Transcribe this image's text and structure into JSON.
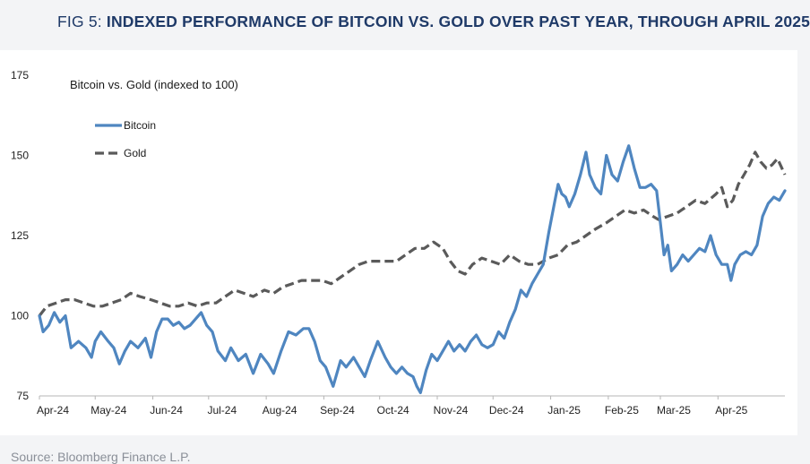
{
  "header": {
    "fig_label": "FIG 5: ",
    "title": "INDEXED PERFORMANCE OF BITCOIN VS. GOLD OVER PAST YEAR, THROUGH APRIL 2025"
  },
  "source": "Source: Bloomberg Finance L.P.",
  "colors": {
    "bitcoin": "#4f86c0",
    "gold": "#5a5a5a",
    "title": "#1f3a68",
    "axis": "#b5b5b5"
  },
  "chart_data": {
    "type": "line",
    "title": "Bitcoin vs. Gold (indexed to 100)",
    "xlabel": "",
    "ylabel": "",
    "ylim": [
      75,
      175
    ],
    "yticks": [
      75,
      100,
      125,
      150,
      175
    ],
    "xlim": [
      "2024-04-01",
      "2025-05-07"
    ],
    "xticks": [
      {
        "date": "2024-04-01",
        "label": "Apr-24"
      },
      {
        "date": "2024-05-01",
        "label": "May-24"
      },
      {
        "date": "2024-06-01",
        "label": "Jun-24"
      },
      {
        "date": "2024-07-01",
        "label": "Jul-24"
      },
      {
        "date": "2024-08-01",
        "label": "Aug-24"
      },
      {
        "date": "2024-09-01",
        "label": "Sep-24"
      },
      {
        "date": "2024-10-01",
        "label": "Oct-24"
      },
      {
        "date": "2024-11-01",
        "label": "Nov-24"
      },
      {
        "date": "2024-12-01",
        "label": "Dec-24"
      },
      {
        "date": "2025-01-01",
        "label": "Jan-25"
      },
      {
        "date": "2025-02-01",
        "label": "Feb-25"
      },
      {
        "date": "2025-03-01",
        "label": "Mar-25"
      },
      {
        "date": "2025-04-01",
        "label": "Apr-25"
      }
    ],
    "legend_placement": "top-left",
    "grid": false,
    "series": [
      {
        "name": "Bitcoin",
        "style": "solid",
        "color": "#4f86c0",
        "points": [
          [
            "2024-04-01",
            100
          ],
          [
            "2024-04-03",
            95
          ],
          [
            "2024-04-06",
            97
          ],
          [
            "2024-04-09",
            101
          ],
          [
            "2024-04-12",
            98
          ],
          [
            "2024-04-15",
            100
          ],
          [
            "2024-04-18",
            90
          ],
          [
            "2024-04-22",
            92
          ],
          [
            "2024-04-26",
            90
          ],
          [
            "2024-04-29",
            87
          ],
          [
            "2024-05-01",
            92
          ],
          [
            "2024-05-04",
            95
          ],
          [
            "2024-05-08",
            92
          ],
          [
            "2024-05-11",
            90
          ],
          [
            "2024-05-14",
            85
          ],
          [
            "2024-05-17",
            89
          ],
          [
            "2024-05-20",
            92
          ],
          [
            "2024-05-24",
            90
          ],
          [
            "2024-05-28",
            93
          ],
          [
            "2024-05-31",
            87
          ],
          [
            "2024-06-03",
            95
          ],
          [
            "2024-06-06",
            99
          ],
          [
            "2024-06-09",
            99
          ],
          [
            "2024-06-12",
            97
          ],
          [
            "2024-06-15",
            98
          ],
          [
            "2024-06-18",
            96
          ],
          [
            "2024-06-21",
            97
          ],
          [
            "2024-06-24",
            99
          ],
          [
            "2024-06-27",
            101
          ],
          [
            "2024-06-30",
            97
          ],
          [
            "2024-07-03",
            95
          ],
          [
            "2024-07-06",
            89
          ],
          [
            "2024-07-10",
            86
          ],
          [
            "2024-07-13",
            90
          ],
          [
            "2024-07-17",
            86
          ],
          [
            "2024-07-21",
            88
          ],
          [
            "2024-07-25",
            82
          ],
          [
            "2024-07-29",
            88
          ],
          [
            "2024-08-02",
            85
          ],
          [
            "2024-08-05",
            82
          ],
          [
            "2024-08-09",
            89
          ],
          [
            "2024-08-13",
            95
          ],
          [
            "2024-08-17",
            94
          ],
          [
            "2024-08-21",
            96
          ],
          [
            "2024-08-24",
            96
          ],
          [
            "2024-08-27",
            92
          ],
          [
            "2024-08-30",
            86
          ],
          [
            "2024-09-02",
            84
          ],
          [
            "2024-09-06",
            78
          ],
          [
            "2024-09-10",
            86
          ],
          [
            "2024-09-13",
            84
          ],
          [
            "2024-09-17",
            87
          ],
          [
            "2024-09-20",
            84
          ],
          [
            "2024-09-23",
            81
          ],
          [
            "2024-09-26",
            86
          ],
          [
            "2024-09-30",
            92
          ],
          [
            "2024-10-04",
            87
          ],
          [
            "2024-10-07",
            84
          ],
          [
            "2024-10-10",
            82
          ],
          [
            "2024-10-13",
            84
          ],
          [
            "2024-10-16",
            82
          ],
          [
            "2024-10-19",
            81
          ],
          [
            "2024-10-21",
            78
          ],
          [
            "2024-10-23",
            76
          ],
          [
            "2024-10-26",
            83
          ],
          [
            "2024-10-29",
            88
          ],
          [
            "2024-11-01",
            86
          ],
          [
            "2024-11-04",
            89
          ],
          [
            "2024-11-07",
            92
          ],
          [
            "2024-11-10",
            89
          ],
          [
            "2024-11-13",
            91
          ],
          [
            "2024-11-16",
            89
          ],
          [
            "2024-11-19",
            92
          ],
          [
            "2024-11-22",
            94
          ],
          [
            "2024-11-25",
            91
          ],
          [
            "2024-11-28",
            90
          ],
          [
            "2024-12-01",
            91
          ],
          [
            "2024-12-04",
            95
          ],
          [
            "2024-12-07",
            93
          ],
          [
            "2024-12-10",
            98
          ],
          [
            "2024-12-13",
            102
          ],
          [
            "2024-12-16",
            108
          ],
          [
            "2024-12-19",
            106
          ],
          [
            "2024-12-22",
            110
          ],
          [
            "2024-12-25",
            113
          ],
          [
            "2024-12-28",
            116
          ],
          [
            "2024-12-31",
            126
          ],
          [
            "2025-01-03",
            135
          ],
          [
            "2025-01-05",
            141
          ],
          [
            "2025-01-07",
            138
          ],
          [
            "2025-01-09",
            137
          ],
          [
            "2025-01-11",
            134
          ],
          [
            "2025-01-14",
            138
          ],
          [
            "2025-01-17",
            144
          ],
          [
            "2025-01-20",
            151
          ],
          [
            "2025-01-22",
            144
          ],
          [
            "2025-01-25",
            140
          ],
          [
            "2025-01-28",
            138
          ],
          [
            "2025-01-31",
            150
          ],
          [
            "2025-02-03",
            144
          ],
          [
            "2025-02-06",
            142
          ],
          [
            "2025-02-09",
            148
          ],
          [
            "2025-02-12",
            153
          ],
          [
            "2025-02-15",
            146
          ],
          [
            "2025-02-18",
            140
          ],
          [
            "2025-02-21",
            140
          ],
          [
            "2025-02-24",
            141
          ],
          [
            "2025-02-27",
            139
          ],
          [
            "2025-03-01",
            129
          ],
          [
            "2025-03-03",
            119
          ],
          [
            "2025-03-05",
            122
          ],
          [
            "2025-03-07",
            114
          ],
          [
            "2025-03-10",
            116
          ],
          [
            "2025-03-13",
            119
          ],
          [
            "2025-03-16",
            117
          ],
          [
            "2025-03-19",
            119
          ],
          [
            "2025-03-22",
            121
          ],
          [
            "2025-03-25",
            120
          ],
          [
            "2025-03-28",
            125
          ],
          [
            "2025-03-31",
            119
          ],
          [
            "2025-04-03",
            116
          ],
          [
            "2025-04-06",
            116
          ],
          [
            "2025-04-08",
            111
          ],
          [
            "2025-04-10",
            116
          ],
          [
            "2025-04-13",
            119
          ],
          [
            "2025-04-16",
            120
          ],
          [
            "2025-04-19",
            119
          ],
          [
            "2025-04-22",
            122
          ],
          [
            "2025-04-25",
            131
          ],
          [
            "2025-04-28",
            135
          ],
          [
            "2025-05-01",
            137
          ],
          [
            "2025-05-04",
            136
          ],
          [
            "2025-05-07",
            139
          ]
        ]
      },
      {
        "name": "Gold",
        "style": "dashed",
        "color": "#5a5a5a",
        "points": [
          [
            "2024-04-01",
            100
          ],
          [
            "2024-04-05",
            103
          ],
          [
            "2024-04-10",
            104
          ],
          [
            "2024-04-15",
            105
          ],
          [
            "2024-04-20",
            105
          ],
          [
            "2024-04-25",
            104
          ],
          [
            "2024-04-30",
            103
          ],
          [
            "2024-05-05",
            103
          ],
          [
            "2024-05-10",
            104
          ],
          [
            "2024-05-15",
            105
          ],
          [
            "2024-05-20",
            107
          ],
          [
            "2024-05-25",
            106
          ],
          [
            "2024-05-31",
            105
          ],
          [
            "2024-06-05",
            104
          ],
          [
            "2024-06-10",
            103
          ],
          [
            "2024-06-15",
            103
          ],
          [
            "2024-06-20",
            104
          ],
          [
            "2024-06-25",
            103
          ],
          [
            "2024-06-30",
            104
          ],
          [
            "2024-07-05",
            104
          ],
          [
            "2024-07-10",
            106
          ],
          [
            "2024-07-15",
            108
          ],
          [
            "2024-07-20",
            107
          ],
          [
            "2024-07-25",
            106
          ],
          [
            "2024-07-31",
            108
          ],
          [
            "2024-08-05",
            107
          ],
          [
            "2024-08-10",
            109
          ],
          [
            "2024-08-15",
            110
          ],
          [
            "2024-08-20",
            111
          ],
          [
            "2024-08-25",
            111
          ],
          [
            "2024-08-31",
            111
          ],
          [
            "2024-09-05",
            110
          ],
          [
            "2024-09-10",
            112
          ],
          [
            "2024-09-15",
            114
          ],
          [
            "2024-09-20",
            116
          ],
          [
            "2024-09-25",
            117
          ],
          [
            "2024-09-30",
            117
          ],
          [
            "2024-10-05",
            117
          ],
          [
            "2024-10-10",
            117
          ],
          [
            "2024-10-15",
            119
          ],
          [
            "2024-10-20",
            121
          ],
          [
            "2024-10-25",
            121
          ],
          [
            "2024-10-30",
            123
          ],
          [
            "2024-11-04",
            121
          ],
          [
            "2024-11-08",
            117
          ],
          [
            "2024-11-12",
            114
          ],
          [
            "2024-11-16",
            113
          ],
          [
            "2024-11-20",
            116
          ],
          [
            "2024-11-25",
            118
          ],
          [
            "2024-11-30",
            117
          ],
          [
            "2024-12-05",
            116
          ],
          [
            "2024-12-10",
            119
          ],
          [
            "2024-12-15",
            117
          ],
          [
            "2024-12-20",
            116
          ],
          [
            "2024-12-25",
            116
          ],
          [
            "2024-12-31",
            118
          ],
          [
            "2025-01-05",
            119
          ],
          [
            "2025-01-10",
            122
          ],
          [
            "2025-01-15",
            123
          ],
          [
            "2025-01-20",
            125
          ],
          [
            "2025-01-25",
            127
          ],
          [
            "2025-01-31",
            129
          ],
          [
            "2025-02-05",
            131
          ],
          [
            "2025-02-10",
            133
          ],
          [
            "2025-02-15",
            132
          ],
          [
            "2025-02-20",
            133
          ],
          [
            "2025-02-25",
            131
          ],
          [
            "2025-02-28",
            130
          ],
          [
            "2025-03-05",
            131
          ],
          [
            "2025-03-10",
            132
          ],
          [
            "2025-03-15",
            134
          ],
          [
            "2025-03-20",
            136
          ],
          [
            "2025-03-25",
            135
          ],
          [
            "2025-03-31",
            138
          ],
          [
            "2025-04-03",
            140
          ],
          [
            "2025-04-06",
            134
          ],
          [
            "2025-04-09",
            136
          ],
          [
            "2025-04-12",
            141
          ],
          [
            "2025-04-15",
            144
          ],
          [
            "2025-04-18",
            147
          ],
          [
            "2025-04-21",
            151
          ],
          [
            "2025-04-24",
            148
          ],
          [
            "2025-04-27",
            146
          ],
          [
            "2025-04-30",
            147
          ],
          [
            "2025-05-03",
            149
          ],
          [
            "2025-05-07",
            144
          ]
        ]
      }
    ]
  }
}
